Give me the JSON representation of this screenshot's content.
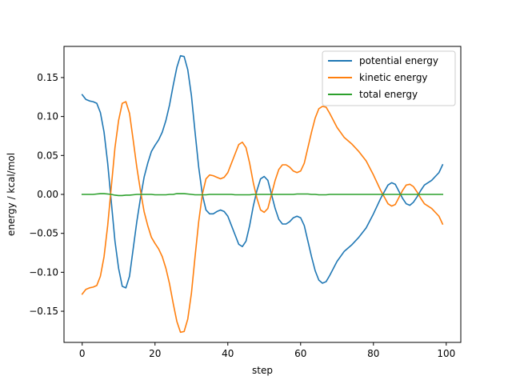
{
  "chart_data": {
    "type": "line",
    "title": "",
    "xlabel": "step",
    "ylabel": "energy / kcal/mol",
    "xlim": [
      -5,
      104
    ],
    "ylim": [
      -0.19,
      0.19
    ],
    "xticks": [
      0,
      20,
      40,
      60,
      80,
      100
    ],
    "yticks": [
      -0.15,
      -0.1,
      -0.05,
      0.0,
      0.05,
      0.1,
      0.15
    ],
    "ytick_labels": [
      "−0.15",
      "−0.10",
      "−0.05",
      "0.00",
      "0.05",
      "0.10",
      "0.15"
    ],
    "grid": false,
    "legend_position": "top-right",
    "x_keypoints": [
      0,
      1,
      2,
      3,
      4,
      5,
      6,
      7,
      8,
      9,
      10,
      11,
      12,
      13,
      14,
      15,
      16,
      17,
      18,
      19,
      20,
      21,
      22,
      23,
      24,
      25,
      26,
      27,
      28,
      29,
      30,
      31,
      32,
      33,
      34,
      35,
      36,
      37,
      38,
      39,
      40,
      41,
      42,
      43,
      44,
      45,
      46,
      47,
      48,
      49,
      50,
      51,
      52,
      53,
      54,
      55,
      56,
      57,
      58,
      59,
      60,
      61,
      62,
      63,
      64,
      65,
      66,
      67,
      68,
      69,
      70,
      72,
      74,
      76,
      78,
      80,
      82,
      84,
      85,
      86,
      88,
      89,
      90,
      91,
      92,
      93,
      94,
      96,
      98,
      99
    ],
    "series": [
      {
        "name": "potential energy",
        "color": "#1f77b4",
        "values": [
          0.128,
          0.122,
          0.12,
          0.119,
          0.117,
          0.105,
          0.08,
          0.04,
          -0.01,
          -0.06,
          -0.095,
          -0.118,
          -0.12,
          -0.105,
          -0.07,
          -0.035,
          -0.005,
          0.022,
          0.04,
          0.055,
          0.063,
          0.07,
          0.08,
          0.095,
          0.115,
          0.14,
          0.163,
          0.178,
          0.177,
          0.16,
          0.127,
          0.08,
          0.035,
          0.0,
          -0.02,
          -0.025,
          -0.025,
          -0.022,
          -0.02,
          -0.022,
          -0.028,
          -0.04,
          -0.052,
          -0.064,
          -0.067,
          -0.06,
          -0.04,
          -0.015,
          0.005,
          0.02,
          0.023,
          0.018,
          0.0,
          -0.018,
          -0.032,
          -0.038,
          -0.038,
          -0.035,
          -0.03,
          -0.028,
          -0.03,
          -0.04,
          -0.06,
          -0.08,
          -0.098,
          -0.11,
          -0.114,
          -0.112,
          -0.104,
          -0.095,
          -0.086,
          -0.073,
          -0.065,
          -0.055,
          -0.043,
          -0.025,
          -0.005,
          0.012,
          0.015,
          0.013,
          -0.005,
          -0.012,
          -0.014,
          -0.01,
          -0.003,
          0.005,
          0.012,
          0.018,
          0.028,
          0.038
        ]
      },
      {
        "name": "kinetic energy",
        "color": "#ff7f0e",
        "values": [
          -0.128,
          -0.122,
          -0.12,
          -0.119,
          -0.117,
          -0.105,
          -0.08,
          -0.04,
          0.01,
          0.06,
          0.095,
          0.117,
          0.119,
          0.104,
          0.07,
          0.035,
          0.005,
          -0.022,
          -0.04,
          -0.055,
          -0.063,
          -0.07,
          -0.08,
          -0.095,
          -0.115,
          -0.14,
          -0.163,
          -0.177,
          -0.176,
          -0.16,
          -0.127,
          -0.08,
          -0.035,
          0.0,
          0.02,
          0.025,
          0.024,
          0.022,
          0.02,
          0.022,
          0.028,
          0.04,
          0.052,
          0.064,
          0.067,
          0.06,
          0.04,
          0.015,
          -0.005,
          -0.02,
          -0.023,
          -0.018,
          0.0,
          0.018,
          0.032,
          0.038,
          0.038,
          0.035,
          0.03,
          0.028,
          0.03,
          0.04,
          0.06,
          0.08,
          0.098,
          0.11,
          0.113,
          0.112,
          0.104,
          0.095,
          0.086,
          0.073,
          0.065,
          0.055,
          0.043,
          0.025,
          0.005,
          -0.012,
          -0.015,
          -0.013,
          0.005,
          0.012,
          0.013,
          0.01,
          0.003,
          -0.005,
          -0.012,
          -0.018,
          -0.028,
          -0.038
        ]
      },
      {
        "name": "total energy",
        "color": "#2ca02c",
        "values": [
          0.0,
          0.0,
          0.0,
          0.0,
          0.0005,
          0.001,
          0.001,
          0.0005,
          0.0,
          -0.001,
          -0.0015,
          -0.0015,
          -0.001,
          -0.001,
          -0.0005,
          0.0,
          0.0,
          0.0,
          0.0,
          0.0,
          -0.0005,
          -0.0005,
          -0.0005,
          -0.0005,
          0.0,
          0.0,
          0.001,
          0.001,
          0.001,
          0.0005,
          0.0,
          -0.0005,
          -0.0005,
          -0.0005,
          -0.0005,
          0.0,
          0.0,
          0.0,
          0.0,
          0.0,
          0.0,
          0.0,
          -0.0005,
          -0.0005,
          -0.0005,
          -0.0005,
          -0.0005,
          0.0,
          0.0,
          0.0,
          0.0,
          0.0,
          0.0,
          0.0,
          0.0,
          0.0,
          0.0,
          0.0,
          0.0,
          0.0005,
          0.0005,
          0.0005,
          0.0005,
          0.0,
          0.0,
          -0.0005,
          -0.0005,
          -0.0005,
          0.0,
          0.0,
          0.0,
          0.0,
          0.0,
          0.0,
          0.0,
          0.0,
          0.0,
          0.0,
          0.0,
          0.0,
          0.0,
          0.0,
          0.0,
          0.0,
          0.0,
          0.0,
          0.0,
          0.0,
          0.0,
          0.0
        ]
      }
    ]
  }
}
